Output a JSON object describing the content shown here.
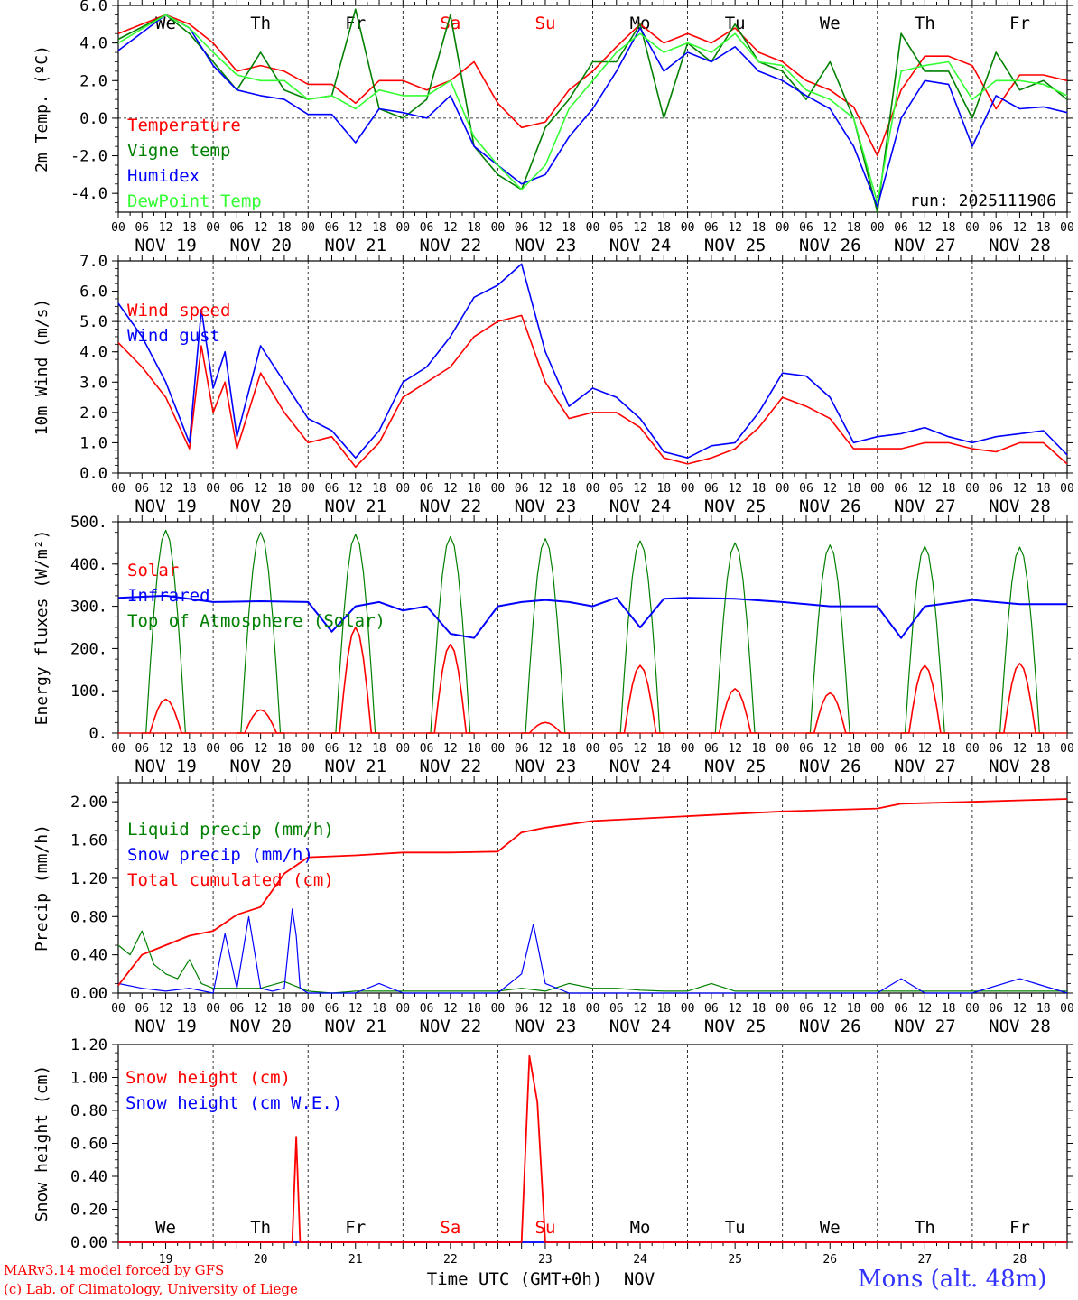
{
  "run_label": "run: 2025111906",
  "x_ticks": [
    "00",
    "06",
    "12",
    "18"
  ],
  "x_end_tick": "00",
  "dates": [
    "NOV 19",
    "NOV 20",
    "NOV 21",
    "NOV 22",
    "NOV 23",
    "NOV 24",
    "NOV 25",
    "NOV 26",
    "NOV 27",
    "NOV 28"
  ],
  "weekdays": [
    {
      "label": "We",
      "color": "#000000"
    },
    {
      "label": "Th",
      "color": "#000000"
    },
    {
      "label": "Fr",
      "color": "#000000"
    },
    {
      "label": "Sa",
      "color": "#ff0000"
    },
    {
      "label": "Su",
      "color": "#ff0000"
    },
    {
      "label": "Mo",
      "color": "#000000"
    },
    {
      "label": "Tu",
      "color": "#000000"
    },
    {
      "label": "We",
      "color": "#000000"
    },
    {
      "label": "Th",
      "color": "#000000"
    },
    {
      "label": "Fr",
      "color": "#000000"
    }
  ],
  "day_numbers": [
    "19",
    "20",
    "21",
    "22",
    "23",
    "24",
    "25",
    "26",
    "27",
    "28"
  ],
  "bottom_axis_label": "Time UTC (GMT+0h)",
  "bottom_month": "NOV",
  "credit_line1": "MARv3.14 model forced by GFS",
  "credit_line2": "(c) Lab. of Climatology, University of Liege",
  "station": "Mons (alt. 48m)",
  "chart_data": [
    {
      "type": "line",
      "ylabel": "2m Temp. (ºC)",
      "ylim": [
        -5,
        6
      ],
      "yticks": [
        6,
        4,
        2,
        0,
        -2,
        -4
      ],
      "ytick_labels": [
        "6.0",
        "4.0",
        "2.0",
        "0.0",
        "-2.0",
        "-4.0"
      ],
      "refline": 0,
      "x_hours": [
        0,
        12,
        18,
        24,
        30,
        36,
        42,
        48,
        54,
        60,
        66,
        72,
        78,
        84,
        90,
        96,
        102,
        108,
        114,
        120,
        126,
        132,
        138,
        144,
        150,
        156,
        162,
        168,
        174,
        180,
        186,
        192,
        198,
        204,
        210,
        216,
        222,
        228,
        234,
        240
      ],
      "series": [
        {
          "name": "Temperature",
          "color": "#ff0000",
          "values": [
            4.5,
            5.5,
            5.0,
            4.0,
            2.5,
            2.8,
            2.5,
            1.8,
            1.8,
            0.8,
            2.0,
            2.0,
            1.5,
            2.0,
            3.0,
            0.8,
            -0.5,
            -0.2,
            1.5,
            2.5,
            3.8,
            5.0,
            4.0,
            4.5,
            4.0,
            4.8,
            3.5,
            3.0,
            2.0,
            1.5,
            0.6,
            -2.0,
            1.5,
            3.3,
            3.3,
            2.8,
            0.5,
            2.3,
            2.3,
            2.0
          ]
        },
        {
          "name": "Vigne temp",
          "color": "#008000",
          "values": [
            4.2,
            5.5,
            4.5,
            3.0,
            1.5,
            3.5,
            1.5,
            1.0,
            1.2,
            5.8,
            0.5,
            0.0,
            1.0,
            5.5,
            -1.5,
            -3.0,
            -3.8,
            -0.5,
            1.0,
            3.0,
            3.0,
            5.0,
            0.0,
            4.0,
            3.0,
            5.0,
            3.0,
            2.5,
            1.0,
            3.0,
            0.0,
            -5.0,
            4.5,
            2.5,
            2.5,
            0.0,
            3.5,
            1.5,
            2.0,
            1.0
          ]
        },
        {
          "name": "Humidex",
          "color": "#0000ff",
          "values": [
            3.6,
            5.5,
            4.8,
            2.8,
            1.5,
            1.2,
            1.0,
            0.2,
            0.2,
            -1.3,
            0.5,
            0.3,
            0.0,
            1.2,
            -1.5,
            -2.5,
            -3.5,
            -3.0,
            -1.0,
            0.5,
            2.5,
            4.8,
            2.5,
            3.5,
            3.0,
            3.8,
            2.5,
            2.0,
            1.2,
            0.5,
            -1.5,
            -4.7,
            0.0,
            2.0,
            1.8,
            -1.5,
            1.2,
            0.5,
            0.6,
            0.3
          ]
        },
        {
          "name": "DewPoint Temp",
          "color": "#33ff33",
          "values": [
            4.0,
            5.5,
            4.8,
            3.5,
            2.3,
            2.0,
            2.0,
            1.0,
            1.2,
            0.5,
            1.5,
            1.2,
            1.2,
            2.0,
            -1.0,
            -2.5,
            -3.8,
            -2.5,
            0.5,
            2.0,
            3.5,
            4.5,
            3.5,
            4.0,
            3.5,
            4.5,
            3.0,
            2.8,
            1.5,
            1.0,
            0.0,
            -4.5,
            2.5,
            2.8,
            3.0,
            1.0,
            2.0,
            2.0,
            1.8,
            1.2
          ]
        }
      ]
    },
    {
      "type": "line",
      "ylabel": "10m Wind (m/s)",
      "ylim": [
        0,
        7
      ],
      "yticks": [
        0,
        1,
        2,
        3,
        4,
        5,
        6,
        7
      ],
      "ytick_labels": [
        "0.0",
        "1.0",
        "2.0",
        "3.0",
        "4.0",
        "5.0",
        "6.0",
        "7.0"
      ],
      "refline": 5,
      "x_hours": [
        0,
        6,
        12,
        18,
        21,
        24,
        27,
        30,
        36,
        42,
        48,
        54,
        60,
        66,
        72,
        78,
        84,
        90,
        96,
        102,
        108,
        114,
        120,
        126,
        132,
        138,
        144,
        150,
        156,
        162,
        168,
        174,
        180,
        186,
        192,
        198,
        204,
        210,
        216,
        222,
        228,
        234,
        240
      ],
      "series": [
        {
          "name": "Wind speed",
          "color": "#ff0000",
          "values": [
            4.3,
            3.5,
            2.5,
            0.8,
            4.2,
            2.0,
            3.0,
            0.8,
            3.3,
            2.0,
            1.0,
            1.2,
            0.2,
            1.0,
            2.5,
            3.0,
            3.5,
            4.5,
            5.0,
            5.2,
            3.0,
            1.8,
            2.0,
            2.0,
            1.5,
            0.5,
            0.3,
            0.5,
            0.8,
            1.5,
            2.5,
            2.2,
            1.8,
            0.8,
            0.8,
            0.8,
            1.0,
            1.0,
            0.8,
            0.7,
            1.0,
            1.0,
            0.3
          ]
        },
        {
          "name": "Wind gust",
          "color": "#0000ff",
          "values": [
            5.6,
            4.5,
            3.0,
            1.0,
            5.4,
            2.8,
            4.0,
            1.2,
            4.2,
            3.0,
            1.8,
            1.4,
            0.5,
            1.4,
            3.0,
            3.5,
            4.5,
            5.8,
            6.2,
            6.9,
            4.0,
            2.2,
            2.8,
            2.5,
            1.8,
            0.7,
            0.5,
            0.9,
            1.0,
            2.0,
            3.3,
            3.2,
            2.5,
            1.0,
            1.2,
            1.3,
            1.5,
            1.2,
            1.0,
            1.2,
            1.3,
            1.4,
            0.6
          ]
        }
      ]
    },
    {
      "type": "line",
      "ylabel": "Energy fluxes (W/m²)",
      "ylim": [
        0,
        500
      ],
      "yticks": [
        0,
        100,
        200,
        300,
        400,
        500
      ],
      "ytick_labels": [
        "0.",
        "100.",
        "200.",
        "300.",
        "400.",
        "500."
      ],
      "top_curve": {
        "name": "Top of Atmosphere (Solar)",
        "color": "#008000",
        "peaks": [
          480,
          475,
          470,
          465,
          460,
          455,
          450,
          445,
          442,
          440
        ]
      },
      "solar_peaks": {
        "name": "Solar",
        "color": "#ff0000",
        "peaks": [
          80,
          55,
          250,
          210,
          25,
          160,
          105,
          95,
          160,
          165
        ]
      },
      "infrared": {
        "name": "Infrared",
        "color": "#0000ff",
        "x_hours": [
          0,
          12,
          24,
          36,
          48,
          54,
          60,
          66,
          72,
          78,
          84,
          90,
          96,
          102,
          108,
          114,
          120,
          126,
          132,
          138,
          144,
          156,
          168,
          180,
          192,
          198,
          204,
          216,
          228,
          240
        ],
        "values": [
          320,
          325,
          310,
          312,
          310,
          240,
          300,
          310,
          290,
          300,
          235,
          225,
          300,
          310,
          315,
          310,
          300,
          320,
          250,
          318,
          320,
          318,
          310,
          300,
          300,
          225,
          300,
          315,
          305,
          305
        ]
      }
    },
    {
      "type": "line",
      "ylabel": "Precip (mm/h)",
      "ylim": [
        0,
        2.2
      ],
      "yticks": [
        0,
        0.4,
        0.8,
        1.2,
        1.6,
        2.0
      ],
      "ytick_labels": [
        "0.00",
        "0.40",
        "0.80",
        "1.20",
        "1.60",
        "2.00"
      ],
      "series": [
        {
          "name": "Liquid precip (mm/h)",
          "color": "#008000",
          "x_hours": [
            0,
            3,
            6,
            9,
            12,
            15,
            18,
            21,
            24,
            30,
            36,
            42,
            48,
            54,
            60,
            72,
            96,
            102,
            108,
            114,
            120,
            126,
            132,
            138,
            144,
            150,
            156,
            168,
            180,
            192,
            204,
            216,
            228,
            240
          ],
          "values": [
            0.5,
            0.4,
            0.65,
            0.3,
            0.2,
            0.15,
            0.35,
            0.1,
            0.05,
            0.05,
            0.05,
            0.12,
            0.02,
            0.0,
            0.02,
            0.02,
            0.02,
            0.05,
            0.02,
            0.1,
            0.05,
            0.05,
            0.03,
            0.02,
            0.02,
            0.1,
            0.02,
            0.02,
            0.02,
            0.02,
            0.02,
            0.02,
            0.02,
            0.02
          ]
        },
        {
          "name": "Snow precip (mm/h)",
          "color": "#0000ff",
          "x_hours": [
            0,
            6,
            12,
            18,
            24,
            27,
            30,
            33,
            36,
            39,
            42,
            44,
            45,
            46,
            48,
            60,
            66,
            72,
            96,
            102,
            105,
            108,
            114,
            120,
            144,
            168,
            192,
            198,
            204,
            216,
            228,
            240
          ],
          "values": [
            0.1,
            0.05,
            0.02,
            0.05,
            0.0,
            0.62,
            0.05,
            0.8,
            0.05,
            0.02,
            0.05,
            0.88,
            0.6,
            0.05,
            0.0,
            0.0,
            0.1,
            0.0,
            0.0,
            0.2,
            0.72,
            0.1,
            0.0,
            0.0,
            0.0,
            0.0,
            0.0,
            0.15,
            0.0,
            0.0,
            0.15,
            0.0
          ]
        },
        {
          "name": "Total cumulated (cm)",
          "color": "#ff0000",
          "x_hours": [
            0,
            6,
            12,
            18,
            24,
            30,
            36,
            42,
            48,
            60,
            72,
            84,
            96,
            102,
            108,
            120,
            144,
            168,
            192,
            198,
            216,
            240
          ],
          "values": [
            0.08,
            0.4,
            0.5,
            0.6,
            0.65,
            0.82,
            0.9,
            1.25,
            1.42,
            1.44,
            1.47,
            1.47,
            1.48,
            1.68,
            1.73,
            1.8,
            1.85,
            1.9,
            1.93,
            1.98,
            2.0,
            2.03
          ]
        }
      ]
    },
    {
      "type": "line",
      "ylabel": "Snow height (cm)",
      "ylim": [
        0,
        1.2
      ],
      "yticks": [
        0,
        0.2,
        0.4,
        0.6,
        0.8,
        1.0,
        1.2
      ],
      "ytick_labels": [
        "0.00",
        "0.20",
        "0.40",
        "0.60",
        "0.80",
        "1.00",
        "1.20"
      ],
      "series": [
        {
          "name": "Snow height (cm)",
          "color": "#ff0000",
          "x_hours": [
            0,
            44,
            45,
            46,
            102,
            104,
            106,
            108,
            240
          ],
          "values": [
            0,
            0,
            0.64,
            0,
            0,
            1.13,
            0.85,
            0,
            0
          ]
        },
        {
          "name": "Snow height (cm W.E.)",
          "color": "#0000ff",
          "x_hours": [
            0,
            240
          ],
          "values": [
            0,
            0
          ]
        }
      ]
    }
  ]
}
